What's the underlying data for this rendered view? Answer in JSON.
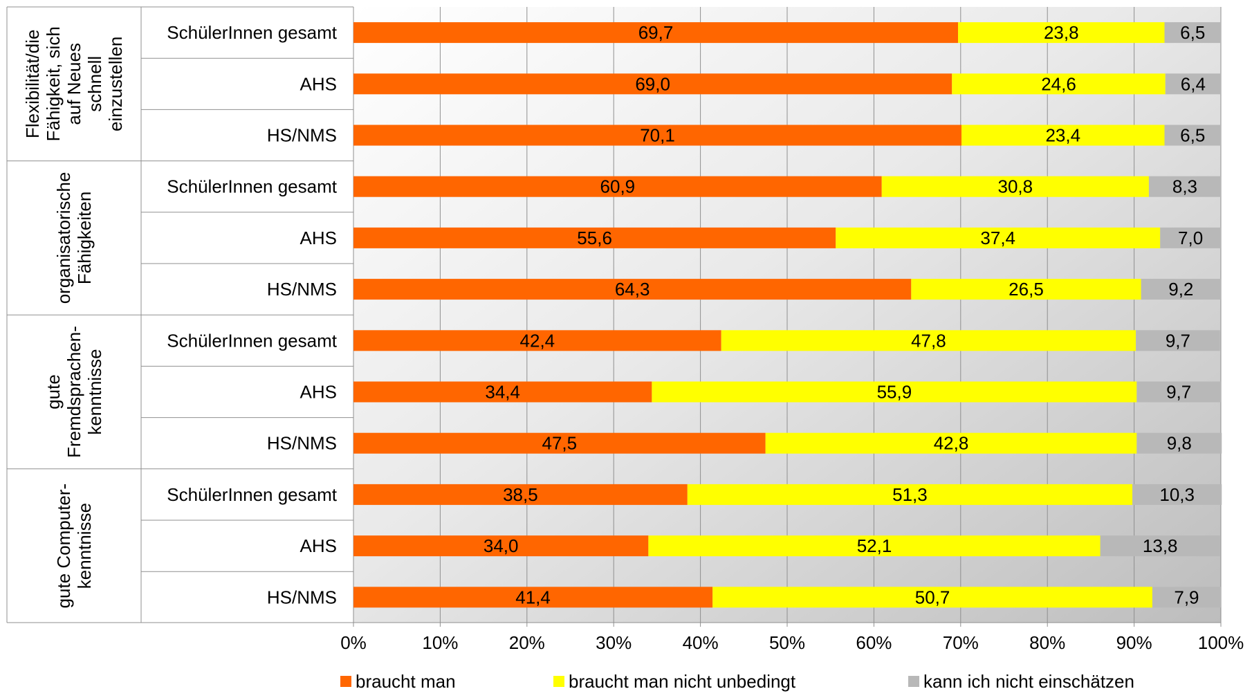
{
  "chart_data": {
    "type": "bar",
    "orientation": "horizontal",
    "stacked": "percent",
    "xlim": [
      0,
      100
    ],
    "x_ticks": [
      "0%",
      "10%",
      "20%",
      "30%",
      "40%",
      "50%",
      "60%",
      "70%",
      "80%",
      "90%",
      "100%"
    ],
    "grid": true,
    "legend_position": "bottom",
    "groups": [
      {
        "label_lines": [
          "Flexibilität/die",
          "Fähigkeit, sich",
          "auf Neues",
          "schnell",
          "einzustellen"
        ],
        "categories": [
          "SchülerInnen gesamt",
          "AHS",
          "HS/NMS"
        ],
        "values": [
          [
            69.7,
            23.8,
            6.5
          ],
          [
            69.0,
            24.6,
            6.4
          ],
          [
            70.1,
            23.4,
            6.5
          ]
        ],
        "labels": [
          [
            "69,7",
            "23,8",
            "6,5"
          ],
          [
            "69,0",
            "24,6",
            "6,4"
          ],
          [
            "70,1",
            "23,4",
            "6,5"
          ]
        ]
      },
      {
        "label_lines": [
          "organisatorische",
          "Fähigkeiten"
        ],
        "categories": [
          "SchülerInnen gesamt",
          "AHS",
          "HS/NMS"
        ],
        "values": [
          [
            60.9,
            30.8,
            8.3
          ],
          [
            55.6,
            37.4,
            7.0
          ],
          [
            64.3,
            26.5,
            9.2
          ]
        ],
        "labels": [
          [
            "60,9",
            "30,8",
            "8,3"
          ],
          [
            "55,6",
            "37,4",
            "7,0"
          ],
          [
            "64,3",
            "26,5",
            "9,2"
          ]
        ]
      },
      {
        "label_lines": [
          "gute",
          "Fremdsprachen-",
          "kenntnisse"
        ],
        "categories": [
          "SchülerInnen gesamt",
          "AHS",
          "HS/NMS"
        ],
        "values": [
          [
            42.4,
            47.8,
            9.7
          ],
          [
            34.4,
            55.9,
            9.7
          ],
          [
            47.5,
            42.8,
            9.8
          ]
        ],
        "labels": [
          [
            "42,4",
            "47,8",
            "9,7"
          ],
          [
            "34,4",
            "55,9",
            "9,7"
          ],
          [
            "47,5",
            "42,8",
            "9,8"
          ]
        ]
      },
      {
        "label_lines": [
          "gute Computer-",
          "kenntnisse"
        ],
        "categories": [
          "SchülerInnen gesamt",
          "AHS",
          "HS/NMS"
        ],
        "values": [
          [
            38.5,
            51.3,
            10.3
          ],
          [
            34.0,
            52.1,
            13.8
          ],
          [
            41.4,
            50.7,
            7.9
          ]
        ],
        "labels": [
          [
            "38,5",
            "51,3",
            "10,3"
          ],
          [
            "34,0",
            "52,1",
            "13,8"
          ],
          [
            "41,4",
            "50,7",
            "7,9"
          ]
        ]
      }
    ],
    "series": [
      {
        "name": "braucht man",
        "color": "#ff6600"
      },
      {
        "name": "braucht man nicht unbedingt",
        "color": "#ffff00"
      },
      {
        "name": "kann ich nicht einschätzen",
        "color": "#b8b8b8"
      }
    ]
  }
}
